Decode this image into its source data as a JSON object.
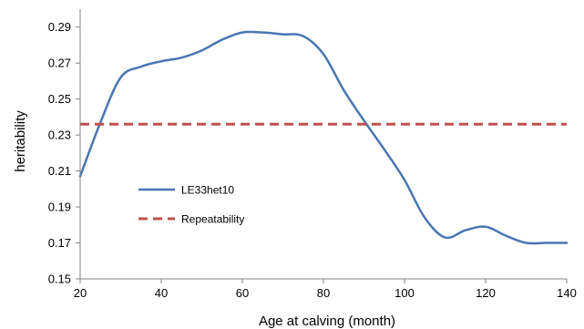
{
  "chart_data": {
    "type": "line",
    "title": "",
    "xlabel": "Age at calving (month)",
    "ylabel": "heritability",
    "xlim": [
      20,
      140
    ],
    "ylim": [
      0.15,
      0.3
    ],
    "xticks": [
      20,
      40,
      60,
      80,
      100,
      120,
      140
    ],
    "yticks": [
      0.15,
      0.17,
      0.19,
      0.21,
      0.23,
      0.25,
      0.27,
      0.29
    ],
    "ytick_labels": [
      "0.15",
      "0.17",
      "0.19",
      "0.21",
      "0.23",
      "0.25",
      "0.27",
      "0.29"
    ],
    "grid": false,
    "legend_position": "center-left",
    "series": [
      {
        "name": "LE33het10",
        "style": "solid",
        "color": "#4a76b2",
        "x": [
          20,
          25,
          30,
          35,
          40,
          45,
          50,
          55,
          60,
          65,
          70,
          75,
          80,
          85,
          90,
          95,
          100,
          105,
          110,
          115,
          120,
          125,
          130,
          135,
          140
        ],
        "y": [
          0.207,
          0.237,
          0.262,
          0.268,
          0.271,
          0.273,
          0.277,
          0.283,
          0.287,
          0.287,
          0.286,
          0.285,
          0.275,
          0.255,
          0.238,
          0.222,
          0.205,
          0.184,
          0.173,
          0.177,
          0.179,
          0.174,
          0.17,
          0.17,
          0.17
        ]
      },
      {
        "name": "Repeatability",
        "style": "dashed",
        "color": "#c0504d",
        "x": [
          20,
          140
        ],
        "y": [
          0.236,
          0.236
        ]
      }
    ]
  }
}
